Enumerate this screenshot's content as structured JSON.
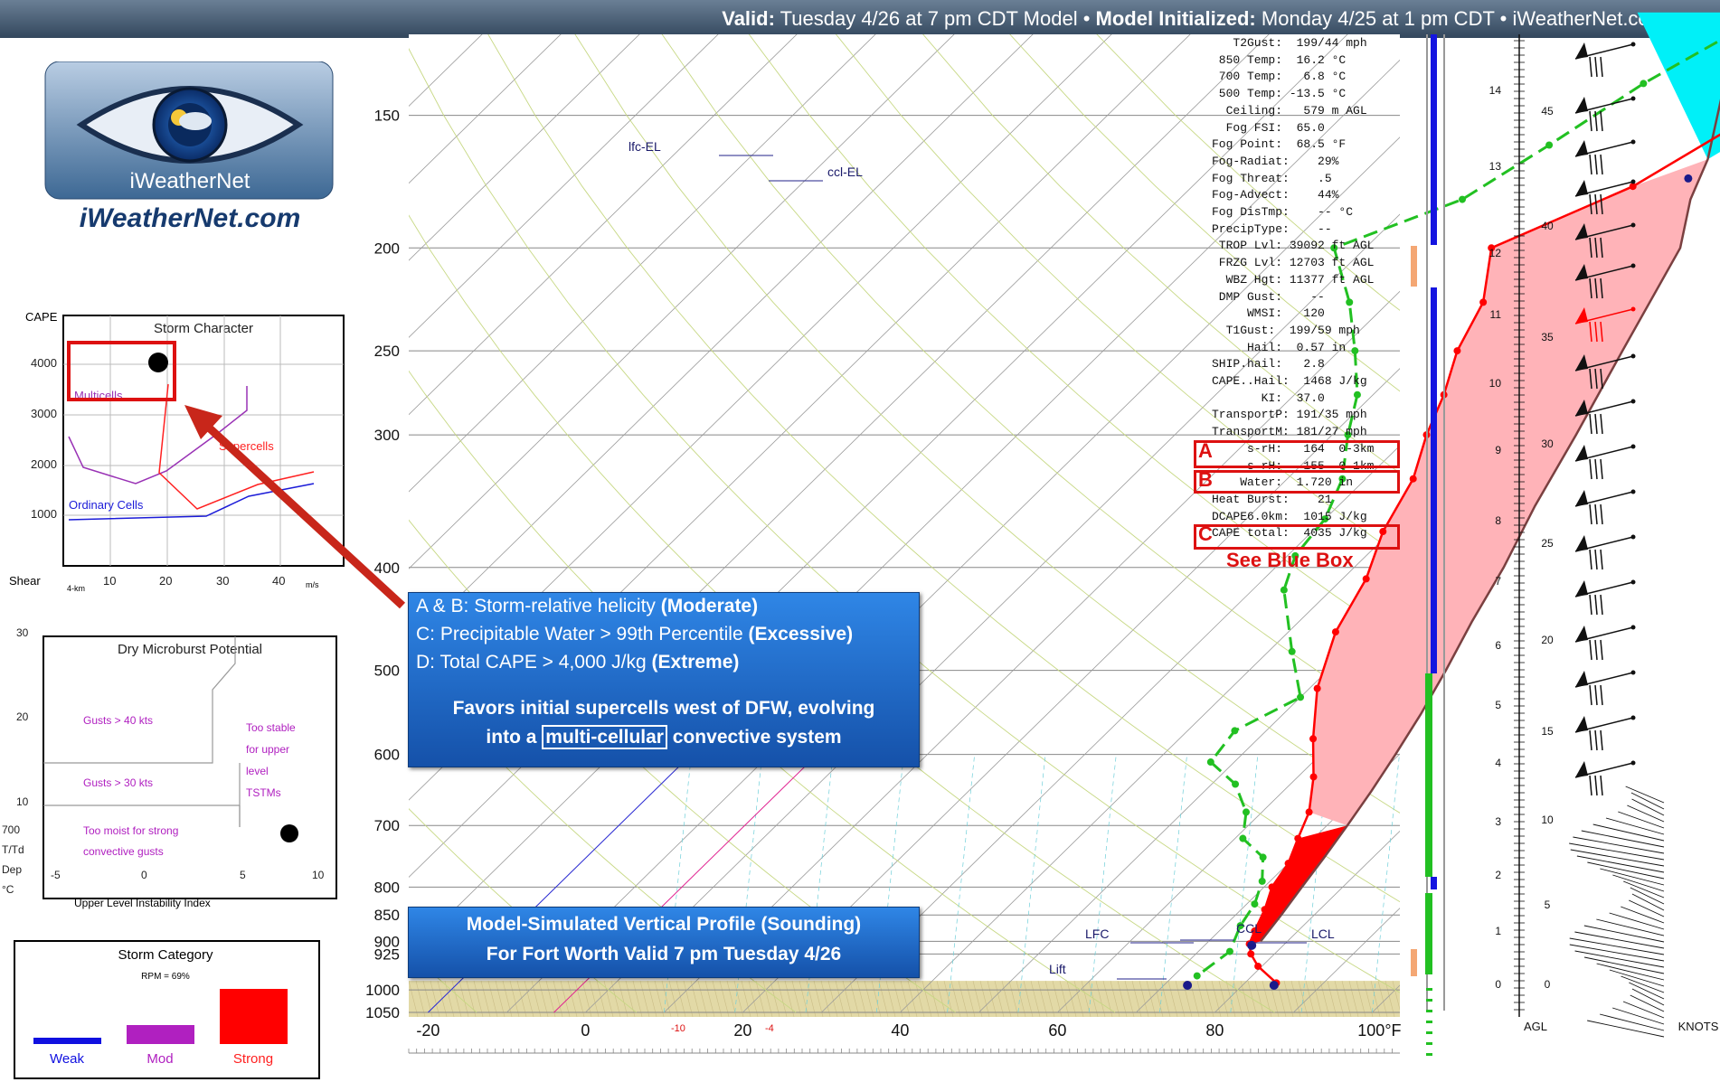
{
  "header": {
    "valid_label": "Valid:",
    "valid_text": "Tuesday 4/26 at 7 pm CDT Model",
    "init_label": "Model Initialized:",
    "init_text": "Monday 4/25 at 1 pm CDT",
    "site": "iWeatherNet.com",
    "sep": "•"
  },
  "logo": {
    "small": "iWeatherNet",
    "big": "iWeatherNet.com"
  },
  "storm_character": {
    "title": "Storm Character",
    "y_title": "CAPE",
    "x_title": "Shear",
    "x_sub": "4-km",
    "x_unit": "m/s",
    "y_ticks": [
      "4000",
      "3000",
      "2000",
      "1000"
    ],
    "x_ticks": [
      "10",
      "20",
      "30",
      "40"
    ],
    "labels": {
      "multicells": "Multicells",
      "supercells": "Supercells",
      "ordinary": "Ordinary Cells"
    }
  },
  "dry_microburst": {
    "title": "Dry Microburst Potential",
    "y_ticks": [
      "30",
      "20",
      "10"
    ],
    "y_title": [
      "700",
      "T/Td",
      "Dep",
      "°C"
    ],
    "x_ticks": [
      "-5",
      "0",
      "5",
      "10"
    ],
    "x_title": "Upper Level Instability Index",
    "regions": {
      "g40": "Gusts > 40 kts",
      "g30": "Gusts > 30 kts",
      "stable": [
        "Too stable",
        "for upper",
        "level",
        "TSTMs"
      ],
      "moist": [
        "Too moist for strong",
        "convective gusts"
      ]
    }
  },
  "storm_category": {
    "title": "Storm Category",
    "rpm": "RPM = 69%",
    "legend": [
      {
        "label": "Weak",
        "color": "#1010e0"
      },
      {
        "label": "Mod",
        "color": "#b020c0"
      },
      {
        "label": "Strong",
        "color": "#ff0000"
      }
    ]
  },
  "callout_top": {
    "line1_a": "A & B: Storm-relative helicity ",
    "line1_b": "(Moderate)",
    "line2_a": "C: Precipitable Water > 99th Percentile ",
    "line2_b": "(Excessive)",
    "line3_a": "D: Total CAPE > 4,000 J/kg ",
    "line3_b": "(Extreme)",
    "line4": "Favors initial supercells west of DFW, evolving",
    "line5_a": "into a ",
    "line5_box": "multi-cellular",
    "line5_c": " convective system"
  },
  "callout_bottom": {
    "line1": "Model-Simulated Vertical Profile (Sounding)",
    "line2": "For Fort Worth Valid 7 pm Tuesday 4/26"
  },
  "indices": [
    "   T2Gust:  199/44 mph",
    " 850 Temp:  16.2 °C",
    " 700 Temp:   6.8 °C",
    " 500 Temp: -13.5 °C",
    "  Ceiling:   579 m AGL",
    "  Fog FSI:  65.0",
    "Fog Point:  68.5 °F",
    "Fog-Radiat:    29%",
    "Fog Threat:    .5",
    "Fog-Advect:    44%",
    "Fog DisTmp:    -- °C",
    "PrecipType:    --",
    " TROP Lvl: 39092 ft AGL",
    " FRZG Lvl: 12703 ft AGL",
    "  WBZ Hgt: 11377 ft AGL",
    " DMP Gust:    --",
    "     WMSI:   120",
    "  T1Gust:  199/59 mph",
    "     Hail:  0.57 in",
    "SHIP.hail:   2.8",
    "CAPE..Hail:  1468 J/kg",
    "       KI:  37.0",
    "TransportP: 191/35 mph",
    "TransportM: 181/27 mph",
    "     s-rH:   164  0-3km",
    "     s-rH:   155  0-1km",
    "    Water:  1.720 in",
    "Heat Burst:    21",
    "DCAPE6.0km:  1015 J/kg",
    "CAPE total:  4035 J/kg"
  ],
  "box_labels": {
    "a": "A",
    "b": "B",
    "c": "C",
    "see": "See Blue Box"
  },
  "chart_data": {
    "type": "line",
    "title": "",
    "xlabel": "",
    "ylabel": "",
    "x_unit": "°F",
    "xlim": [
      -22,
      104
    ],
    "y_ticks": [
      150,
      200,
      250,
      300,
      400,
      500,
      600,
      700,
      800,
      850,
      900,
      925,
      1000,
      1050
    ],
    "x_ticks": [
      "-20",
      "0",
      "20",
      "40",
      "60",
      "80",
      "100°F"
    ],
    "x_ticks_c": [
      "-10",
      "-4"
    ],
    "annotations": [
      "lfc-EL",
      "ccl-EL",
      "LFC",
      "CCL",
      "LCL",
      "Lift"
    ],
    "series": [
      {
        "name": "",
        "color": "#ff0000",
        "p": [
          135,
          150,
          175,
          200,
          225,
          250,
          275,
          300,
          330,
          370,
          410,
          460,
          520,
          580,
          630,
          680,
          720,
          760,
          800,
          840,
          880,
          905,
          925,
          950,
          985
        ],
        "t": [
          40,
          32,
          26,
          16,
          22,
          25,
          29,
          32,
          36,
          39,
          43,
          46,
          51,
          57,
          62,
          66,
          68,
          70,
          71,
          73,
          74.5,
          75.5,
          77,
          79.5,
          84
        ]
      },
      {
        "name": "",
        "color": "#22c022",
        "p": [
          125,
          140,
          160,
          180,
          200,
          225,
          250,
          275,
          300,
          330,
          360,
          390,
          420,
          480,
          530,
          570,
          610,
          640,
          680,
          720,
          750,
          790,
          830,
          870,
          920,
          970
        ],
        "t": [
          19,
          14,
          10,
          6,
          -4,
          5,
          12,
          18,
          22,
          27,
          30,
          31,
          34,
          43,
          50,
          46,
          47,
          53,
          58,
          61,
          66,
          69,
          71,
          72,
          74,
          73
        ]
      },
      {
        "name": "",
        "color": "#7a4040",
        "p": [
          125,
          165,
          180,
          200,
          250,
          300,
          350,
          400,
          450,
          500,
          550,
          600,
          650,
          700,
          750,
          800,
          850,
          900
        ],
        "t": [
          19,
          32,
          35,
          40,
          46,
          51,
          55,
          59,
          62,
          65,
          67.5,
          69.5,
          71.2,
          72.6,
          73.8,
          74.8,
          75.8,
          76.6
        ]
      }
    ],
    "wind_heights_km": [
      "14",
      "13",
      "12",
      "11",
      "10",
      "9",
      "8",
      "7",
      "6",
      "5",
      "4",
      "3",
      "2",
      "1",
      "0"
    ],
    "wind_heights_kft": [
      "45",
      "40",
      "35",
      "30",
      "25",
      "20",
      "15",
      "10",
      "5",
      "0"
    ],
    "wind_axis_labels": {
      "agl": "AGL",
      "knots": "KNOTS"
    }
  }
}
